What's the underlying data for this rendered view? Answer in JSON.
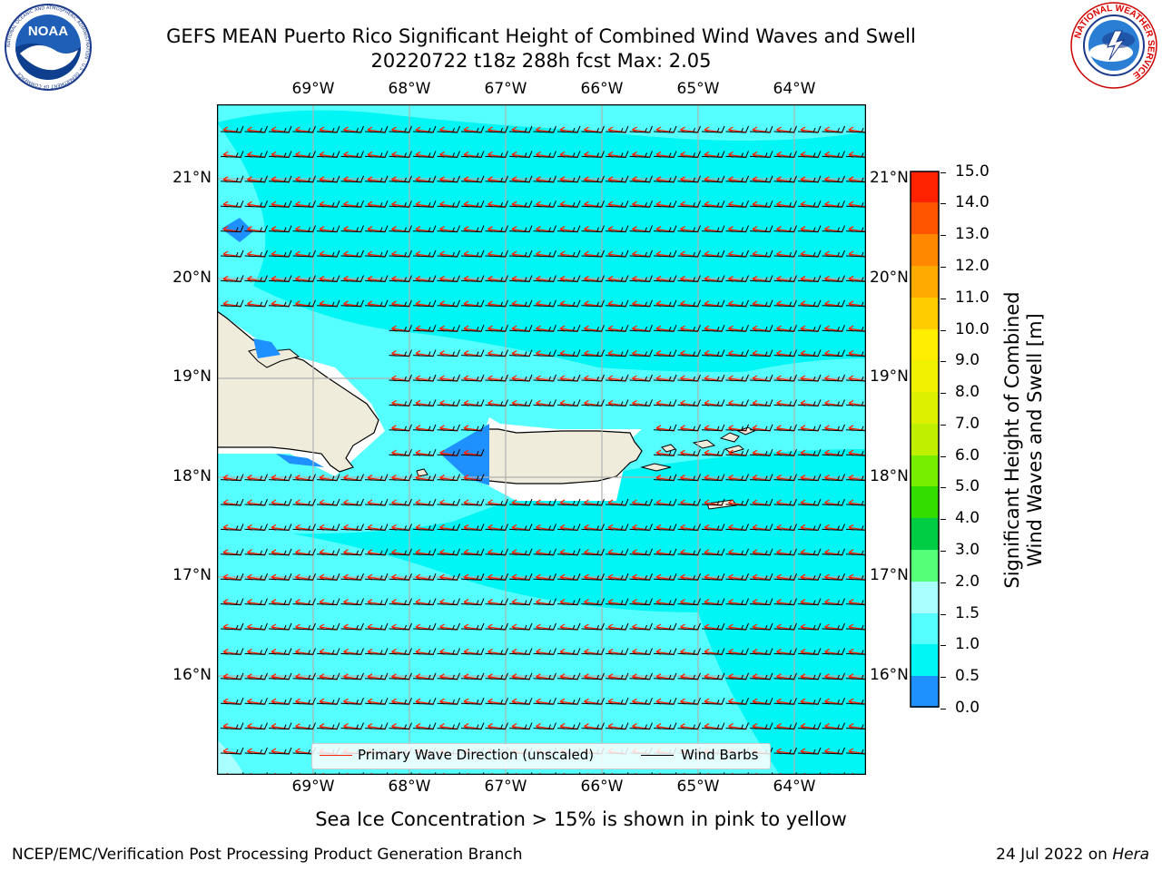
{
  "title": {
    "line1": "GEFS MEAN Puerto Rico Significant Height of Combined Wind Waves and Swell",
    "line2": "20220722 t18z 288h fcst   Max: 2.05"
  },
  "logos": {
    "noaa_text": "NOAA",
    "noaa_ring": "NATIONAL OCEANIC AND ATMOSPHERIC ADMINISTRATION · U.S. DEPARTMENT OF COMMERCE",
    "nws_ring": "NATIONAL WEATHER SERVICE"
  },
  "map": {
    "lon_labels": [
      "69°W",
      "68°W",
      "67°W",
      "66°W",
      "65°W",
      "64°W"
    ],
    "lat_labels": [
      "21°N",
      "20°N",
      "19°N",
      "18°N",
      "17°N",
      "16°N"
    ],
    "colors": {
      "sea_main": "#00f5f5",
      "sea_light": "#55ffff",
      "sea_lighter": "#aaffff",
      "sea_shallow": "#1e90ff",
      "land": "#efecdc",
      "gridline": "#b0b0b0",
      "wave_arrow": "#ff2200",
      "wind_barb": "#000000"
    }
  },
  "legend": {
    "wave_label": "Primary Wave Direction (unscaled)",
    "wind_label": "Wind Barbs"
  },
  "colorbar": {
    "title_line1": "Significant Height of Combined",
    "title_line2": "Wind Waves and Swell [m]",
    "ticks": [
      "15.0",
      "14.0",
      "13.0",
      "12.0",
      "11.0",
      "10.0",
      "9.0",
      "8.0",
      "7.0",
      "6.0",
      "5.0",
      "4.0",
      "3.0",
      "2.0",
      "1.5",
      "1.0",
      "0.5",
      "0.0"
    ],
    "bands_top_to_bottom": [
      "#ff0000",
      "#ff2200",
      "#ff5500",
      "#ff8800",
      "#ffaa00",
      "#ffcc00",
      "#ffee00",
      "#f0f000",
      "#ddf000",
      "#bff000",
      "#77ee00",
      "#33dd00",
      "#00cc44",
      "#55ff77",
      "#aaffff",
      "#55ffff",
      "#00f5f5",
      "#1e90ff",
      "#0000ff"
    ]
  },
  "notes": {
    "ice": "Sea Ice Concentration > 15% is shown in pink to yellow"
  },
  "footer": {
    "left": "NCEP/EMC/Verification Post Processing Product Generation Branch",
    "right_date": "24 Jul 2022 on ",
    "right_host": "Hera"
  }
}
